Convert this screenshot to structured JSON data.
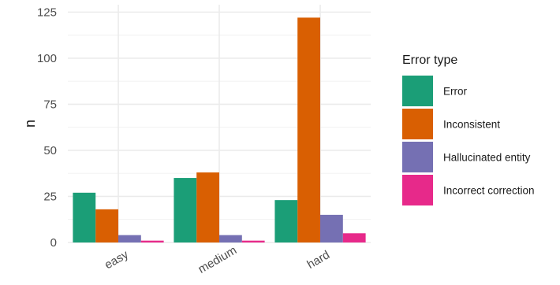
{
  "chart_data": {
    "type": "bar",
    "title": "",
    "xlabel": "",
    "ylabel": "n",
    "categories": [
      "easy",
      "medium",
      "hard"
    ],
    "ylim": [
      0,
      129
    ],
    "yticks": [
      0,
      25,
      50,
      75,
      100,
      125
    ],
    "grid": true,
    "legend": {
      "title": "Error type",
      "position": "right"
    },
    "series": [
      {
        "name": "Error",
        "color": "#1b9e77",
        "values": [
          27,
          35,
          23
        ]
      },
      {
        "name": "Inconsistent",
        "color": "#d95f02",
        "values": [
          18,
          38,
          122
        ]
      },
      {
        "name": "Hallucinated entity",
        "color": "#7570b3",
        "values": [
          4,
          4,
          15
        ]
      },
      {
        "name": "Incorrect correction",
        "color": "#e7298a",
        "values": [
          1,
          1,
          5
        ]
      }
    ]
  }
}
